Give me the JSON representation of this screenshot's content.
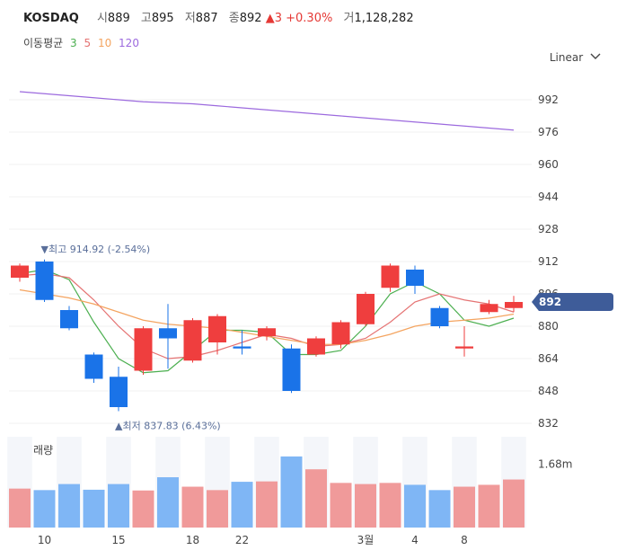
{
  "header": {
    "symbol": "KOSDAQ",
    "open_label": "시",
    "open": "889",
    "high_label": "고",
    "high": "895",
    "low_label": "저",
    "low": "887",
    "close_label": "종",
    "close": "892",
    "change_arrow": "▲",
    "change": "3",
    "change_pct": "+0.30%",
    "volume_label": "거",
    "volume": "1,128,282"
  },
  "ma_legend": {
    "title": "이동평균",
    "items": [
      {
        "label": "3",
        "color": "#4caf50"
      },
      {
        "label": "5",
        "color": "#e57373"
      },
      {
        "label": "10",
        "color": "#f4a460"
      },
      {
        "label": "120",
        "color": "#9c6ade"
      }
    ]
  },
  "scale_selector": {
    "label": "Linear",
    "icon": "chevron-down-icon"
  },
  "volume_panel": {
    "label": "거래량",
    "tick": "1.68m"
  },
  "annotations": {
    "high": {
      "arrow": "▼",
      "label": "최고",
      "value": "914.92 (-2.54%)"
    },
    "low": {
      "arrow": "▲",
      "label": "최저",
      "value": "837.83 (6.43%)"
    }
  },
  "current_price_tag": "892",
  "colors": {
    "up": "#ef3e3e",
    "down": "#1a73e8",
    "up_vol": "#f09a9a",
    "down_vol": "#7fb6f5",
    "price_tag": "#3e5c99"
  },
  "chart_data": {
    "type": "candlestick",
    "y_ticks": [
      "992",
      "976",
      "960",
      "944",
      "928",
      "912",
      "896",
      "880",
      "864",
      "848",
      "832"
    ],
    "ylim": [
      832,
      1000
    ],
    "x_labels": [
      {
        "index": 1,
        "label": "10"
      },
      {
        "index": 4,
        "label": "15"
      },
      {
        "index": 7,
        "label": "18"
      },
      {
        "index": 9,
        "label": "22"
      },
      {
        "index": 14,
        "label": "3월"
      },
      {
        "index": 16,
        "label": "4"
      },
      {
        "index": 18,
        "label": "8"
      }
    ],
    "candles": [
      {
        "o": 904,
        "c": 910,
        "h": 911,
        "l": 902
      },
      {
        "o": 912,
        "c": 893,
        "h": 913,
        "l": 892
      },
      {
        "o": 888,
        "c": 879,
        "h": 890,
        "l": 878
      },
      {
        "o": 866,
        "c": 854,
        "h": 867,
        "l": 852
      },
      {
        "o": 855,
        "c": 840,
        "h": 860,
        "l": 838
      },
      {
        "o": 858,
        "c": 879,
        "h": 880,
        "l": 856
      },
      {
        "o": 879,
        "c": 874,
        "h": 891,
        "l": 859
      },
      {
        "o": 863,
        "c": 883,
        "h": 884,
        "l": 862
      },
      {
        "o": 872,
        "c": 885,
        "h": 886,
        "l": 866
      },
      {
        "o": 870,
        "c": 869,
        "h": 878,
        "l": 866
      },
      {
        "o": 875,
        "c": 879,
        "h": 880,
        "l": 873
      },
      {
        "o": 869,
        "c": 848,
        "h": 871,
        "l": 847
      },
      {
        "o": 866,
        "c": 874,
        "h": 875,
        "l": 865
      },
      {
        "o": 871,
        "c": 882,
        "h": 883,
        "l": 869
      },
      {
        "o": 881,
        "c": 896,
        "h": 897,
        "l": 880
      },
      {
        "o": 899,
        "c": 910,
        "h": 911,
        "l": 897
      },
      {
        "o": 908,
        "c": 900,
        "h": 910,
        "l": 896
      },
      {
        "o": 889,
        "c": 880,
        "h": 890,
        "l": 879
      },
      {
        "o": 869,
        "c": 870,
        "h": 880,
        "l": 865
      },
      {
        "o": 887,
        "c": 891,
        "h": 893,
        "l": 886
      },
      {
        "o": 889,
        "c": 892,
        "h": 895,
        "l": 887
      }
    ],
    "ma": [
      {
        "name": "3",
        "color": "#4caf50",
        "values": [
          906,
          908,
          903,
          882,
          864,
          857,
          858,
          868,
          878,
          878,
          877,
          866,
          866,
          868,
          880,
          896,
          902,
          896,
          883,
          880,
          884
        ]
      },
      {
        "name": "5",
        "color": "#e57373",
        "values": [
          905,
          906,
          904,
          893,
          880,
          869,
          864,
          865,
          868,
          872,
          876,
          874,
          870,
          871,
          874,
          882,
          892,
          896,
          893,
          891,
          887
        ]
      },
      {
        "name": "10",
        "color": "#f4a460",
        "values": [
          898,
          896,
          894,
          891,
          887,
          883,
          881,
          880,
          879,
          877,
          875,
          873,
          871,
          871,
          873,
          876,
          880,
          882,
          883,
          884,
          886
        ]
      },
      {
        "name": "120",
        "color": "#9c6ade",
        "values": [
          996,
          995,
          994,
          993,
          992,
          991,
          990.5,
          990,
          989,
          988,
          987,
          986,
          985,
          984,
          983,
          982,
          981,
          980,
          979,
          978,
          977
        ]
      }
    ],
    "volume": {
      "ylim": [
        0,
        2400000
      ],
      "tick": 1680000,
      "values": [
        1030000,
        990000,
        1150000,
        1000000,
        1150000,
        980000,
        1330000,
        1080000,
        990000,
        1210000,
        1220000,
        1880000,
        1540000,
        1180000,
        1150000,
        1180000,
        1130000,
        990000,
        1080000,
        1130000,
        1270000
      ]
    }
  }
}
